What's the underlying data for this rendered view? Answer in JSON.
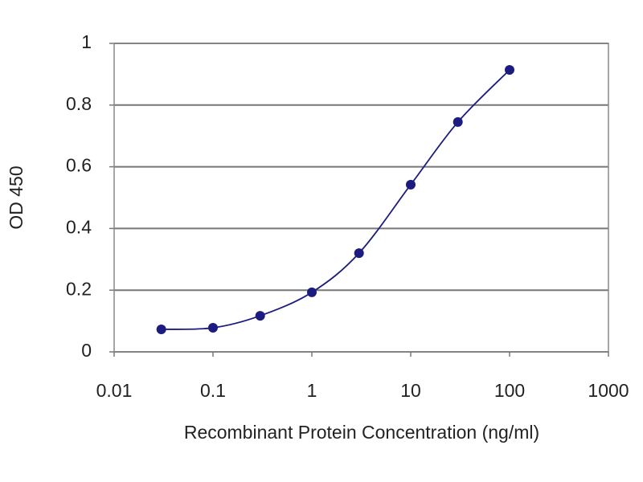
{
  "chart_data": {
    "type": "line",
    "xlabel": "Recombinant Protein Concentration (ng/ml)",
    "ylabel": "OD 450",
    "x": [
      0.03,
      0.1,
      0.3,
      1,
      3,
      10,
      30,
      100
    ],
    "values": [
      0.073,
      0.078,
      0.117,
      0.193,
      0.32,
      0.542,
      0.745,
      0.914
    ],
    "color": "#1c1c80",
    "markers": true,
    "smooth": true,
    "xscale": "log",
    "xlim": [
      0.01,
      1000
    ],
    "xticks": [
      0.01,
      0.1,
      1,
      10,
      100,
      1000
    ],
    "ylim": [
      0,
      1
    ],
    "yticks": [
      0,
      0.2,
      0.4,
      0.6,
      0.8,
      1
    ],
    "grid": true
  }
}
